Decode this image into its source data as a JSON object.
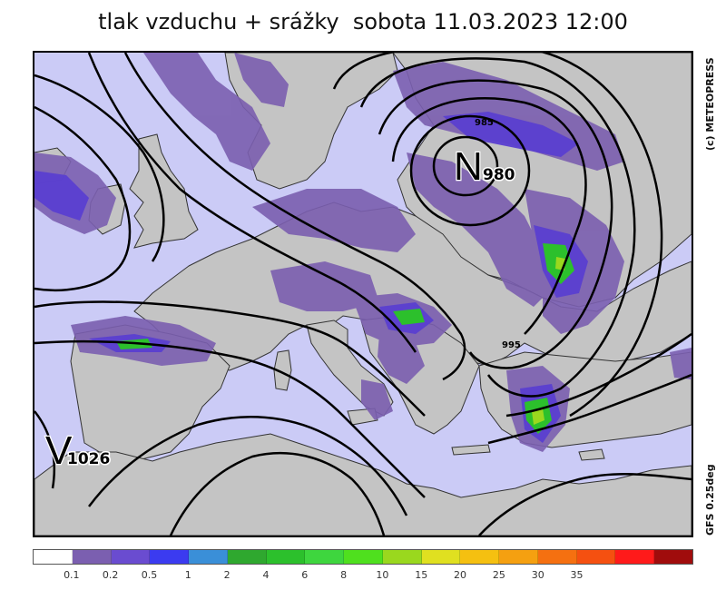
{
  "title": "tlak vzduchu + srážky  sobota 11.03.2023 12:00",
  "credits": {
    "copyright": "(c) METEOPRESS",
    "model": "GFS 0.25deg"
  },
  "pressure_centers": [
    {
      "type_letter": "N",
      "value": "980",
      "meaning": "low"
    },
    {
      "type_letter": "V",
      "value": "1026",
      "meaning": "high"
    }
  ],
  "isobar_labels": [
    "985",
    "995"
  ],
  "legend": {
    "colors": [
      "#ffffff",
      "#7b5fb0",
      "#6a4cd0",
      "#3b3bf0",
      "#3a8fd8",
      "#2fa82f",
      "#2cc02c",
      "#3ed63e",
      "#4fe01e",
      "#9ad81e",
      "#e0e020",
      "#f5c010",
      "#f5a010",
      "#f57010",
      "#f55010",
      "#ff1a1a",
      "#a00c0c"
    ],
    "labels": [
      "0.1",
      "0.2",
      "0.5",
      "1",
      "2",
      "4",
      "6",
      "8",
      "10",
      "15",
      "20",
      "25",
      "30",
      "35"
    ]
  },
  "colors": {
    "sea": "#cbcbf6",
    "land": "#c4c4c4",
    "coast": "#333333",
    "isobar": "#000000",
    "precip_light": "#7b5fb0",
    "precip_mid": "#5a3fd0",
    "precip_heavy": "#2cc02c",
    "precip_peak": "#9ad81e"
  }
}
